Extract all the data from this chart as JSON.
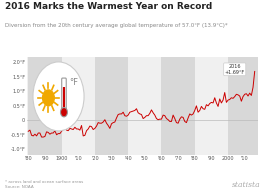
{
  "title": "2016 Marks the Warmest Year on Record",
  "subtitle": "Diversion from the 20th century average global temperature of 57.0°F (13.9°C)*",
  "line_color": "#cc0000",
  "background_color": "#ffffff",
  "plot_bg_color": "#f0f0f0",
  "stripe_color": "#d8d8d8",
  "title_fontsize": 6.5,
  "subtitle_fontsize": 4.0,
  "ylim": [
    -1.2,
    2.2
  ],
  "xlim": [
    1879,
    2018
  ],
  "yticks": [
    -1.0,
    -0.5,
    0,
    0.5,
    1.0,
    1.5,
    2.0
  ],
  "ytick_labels": [
    "-1.0°F",
    "-0.5°F",
    "0",
    "0.5°F",
    "1.0°F",
    "1.5°F",
    "2.0°F"
  ],
  "xtick_positions": [
    1880,
    1890,
    1900,
    1910,
    1920,
    1930,
    1940,
    1950,
    1960,
    1970,
    1980,
    1990,
    2000,
    2010
  ],
  "xtick_labels": [
    "'80",
    "'90",
    "1900",
    "'10",
    "'20",
    "'30",
    "'40",
    "'50",
    "'60",
    "'70",
    "'80",
    "'90",
    "2000",
    "'10"
  ],
  "stripe_starts": [
    1880,
    1900,
    1920,
    1940,
    1960,
    1980,
    2000
  ],
  "annotation_text": "2016\n+1.69°F",
  "source_text": "* across land and ocean surface areas\nSource: NOAA",
  "statista_text": "statista",
  "sun_color": "#f0a800",
  "thermo_red": "#cc0000",
  "thermo_gray": "#999999",
  "anomaly_data": [
    -0.38,
    -0.34,
    -0.52,
    -0.54,
    -0.48,
    -0.54,
    -0.44,
    -0.44,
    -0.58,
    -0.58,
    -0.56,
    -0.4,
    -0.42,
    -0.48,
    -0.44,
    -0.44,
    -0.36,
    -0.5,
    -0.46,
    -0.46,
    -0.38,
    -0.32,
    -0.22,
    -0.34,
    -0.36,
    -0.28,
    -0.3,
    -0.32,
    -0.24,
    -0.3,
    -0.3,
    -0.34,
    -0.18,
    -0.54,
    -0.52,
    -0.36,
    -0.3,
    -0.2,
    -0.22,
    -0.32,
    -0.28,
    -0.2,
    -0.08,
    -0.1,
    -0.1,
    -0.06,
    0.02,
    -0.1,
    -0.18,
    -0.28,
    -0.12,
    -0.08,
    -0.06,
    0.08,
    0.2,
    0.22,
    0.22,
    0.28,
    0.16,
    0.14,
    0.18,
    0.28,
    0.3,
    0.32,
    0.34,
    0.4,
    0.26,
    0.22,
    0.2,
    0.06,
    0.1,
    0.16,
    0.16,
    0.24,
    0.36,
    0.26,
    0.18,
    0.06,
    0.02,
    0.04,
    0.04,
    0.18,
    0.16,
    0.06,
    0.02,
    -0.04,
    -0.04,
    0.18,
    0.06,
    -0.08,
    -0.1,
    0.04,
    0.12,
    0.1,
    -0.04,
    -0.08,
    0.08,
    0.22,
    0.18,
    0.22,
    0.34,
    0.5,
    0.28,
    0.34,
    0.48,
    0.4,
    0.38,
    0.54,
    0.5,
    0.58,
    0.62,
    0.6,
    0.78,
    0.6,
    0.48,
    0.74,
    0.6,
    0.7,
    0.96,
    0.62,
    0.7,
    0.72,
    0.78,
    0.76,
    0.82,
    0.9,
    0.88,
    0.84,
    0.66,
    0.82,
    0.9,
    0.92,
    0.84,
    0.94,
    0.86,
    1.14,
    1.69
  ]
}
